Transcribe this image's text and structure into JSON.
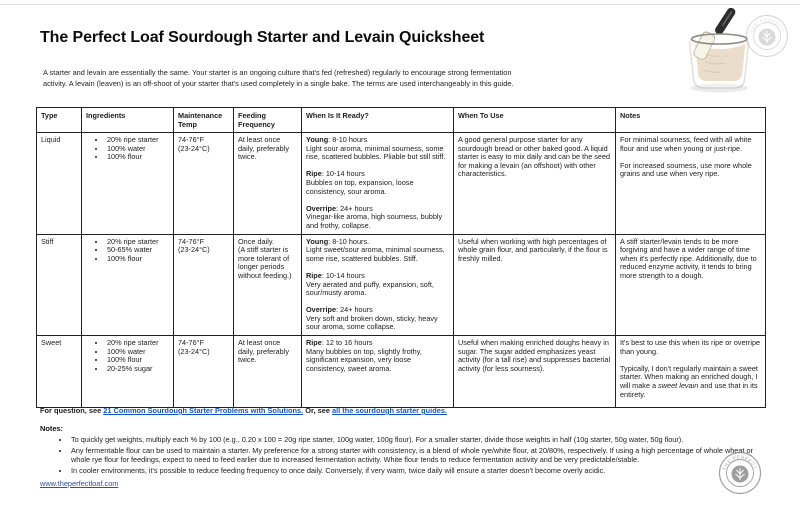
{
  "page": {
    "title": "The Perfect Loaf Sourdough Starter and Levain Quicksheet",
    "intro": "A starter and levain are essentially the same. Your starter is an ongoing culture that's fed (refreshed) regularly to encourage strong fermentation activity. A levain (leaven) is an off-shoot of your starter that's used completely in a single bake. The terms are used interchangeably in this guide."
  },
  "table": {
    "headers": [
      "Type",
      "Ingredients",
      "Maintenance Temp",
      "Feeding Frequency",
      "When Is It Ready?",
      "When To Use",
      "Notes"
    ],
    "rows": [
      {
        "type": "Liquid",
        "ingredients": [
          "20% ripe starter",
          "100% water",
          "100% flour"
        ],
        "temp": "74-76°F\n(23-24°C)",
        "feeding": "At least once daily, preferably twice.",
        "ready_stages": [
          {
            "label": "Young",
            "time": "8-10 hours",
            "desc": "Light sour aroma, minimal sourness, some rise, scattered bubbles. Pliable but still stiff."
          },
          {
            "label": "Ripe",
            "time": "10-14 hours",
            "desc": "Bubbles on top, expansion, loose consistency, sour aroma."
          },
          {
            "label": "Overripe",
            "time": "24+ hours",
            "desc": "Vinegar-like aroma, high sourness, bubbly and frothy, collapse."
          }
        ],
        "when_to_use": "A good general purpose starter for any sourdough bread or other baked good. A liquid starter is easy to mix daily and can be the seed for making a levain (an offshoot) with other characteristics.",
        "notes": [
          "For minimal sourness, feed with all white flour and use when young or just-ripe.",
          "For increased sourness, use more whole grains and use when very ripe."
        ]
      },
      {
        "type": "Stiff",
        "ingredients": [
          "20% ripe starter",
          "50-65% water",
          "100% flour"
        ],
        "temp": "74-76°F\n(23-24°C)",
        "feeding": "Once daily.\n(A stiff starter is more tolerant of longer periods without feeding.)",
        "ready_stages": [
          {
            "label": "Young",
            "time": "8-10 hours.",
            "desc": "Light sweet/sour aroma, minimal sourness, some rise, scattered bubbles. Stiff."
          },
          {
            "label": "Ripe",
            "time": "10-14 hours",
            "desc": "Very aerated and puffy, expansion, soft, sour/musty aroma."
          },
          {
            "label": "Overripe",
            "time": "24+ hours",
            "desc": "Very soft and broken down, sticky, heavy sour aroma, some collapse."
          }
        ],
        "when_to_use": "Useful when working with high percentages of whole grain flour, and particularly, if the flour is freshly milled.",
        "notes": [
          "A stiff starter/levain tends to be more forgiving and have a wider range of time when it's perfectly ripe. Additionally, due to reduced enzyme activity, it tends to bring more strength to a dough."
        ]
      },
      {
        "type": "Sweet",
        "ingredients": [
          "20% ripe starter",
          "100% water",
          "100% flour",
          "20-25% sugar"
        ],
        "temp": "74-76°F\n(23-24°C)",
        "feeding": "At least once daily, preferably twice.",
        "ready_stages": [
          {
            "label": "Ripe",
            "time": "12 to 16 hours",
            "desc": "Many bubbles on top, slightly frothy, significant expansion, very loose consistency, sweet aroma."
          }
        ],
        "when_to_use": "Useful when making enriched doughs heavy in sugar. The sugar added emphasizes yeast activity (for a tall rise) and suppresses bacterial activity (for less sourness).",
        "notes": [
          "It's best to use this when its ripe or overripe than young.",
          "Typically, I don't regularly maintain a sweet starter. When making an enriched dough, I will make a *sweet levain* and use that in its entirety."
        ]
      }
    ]
  },
  "footer": {
    "question_prefix": "For question, see ",
    "link_problems": "21 Common Sourdough Starter Problems with Solutions.",
    "question_middle": " Or, see ",
    "link_guides": "all the sourdough starter guides.",
    "notes_label": "Notes:",
    "notes": [
      "To quickly get weights, multiply each % by 100 (e.g., 0.20 x 100 = 20g ripe starter, 100g water, 100g flour). For a smaller starter, divide those weights in half (10g starter, 50g water, 50g flour).",
      "Any fermentable flour can be used to maintain a starter. My preference for a strong starter with consistency, is a blend of whole rye/white flour, at 20/80%, respectively. If using a high percentage of whole wheat or whole rye flour for feedings, expect to need to feed earlier due to increased fermentation activity. White flour tends to reduce fermentation activity and be very predictable/stable.",
      "In cooler environments, it's possible to reduce feeding frequency to once daily. Conversely, if very warm, twice daily will ensure a starter doesn't become overly acidic."
    ],
    "site_url": "www.theperfectloaf.com",
    "stamp_text": "THE PERFECT LOAF"
  },
  "colors": {
    "link": "#1155cc",
    "url_link": "#3050a5",
    "stamp": "#8d8d8d"
  }
}
